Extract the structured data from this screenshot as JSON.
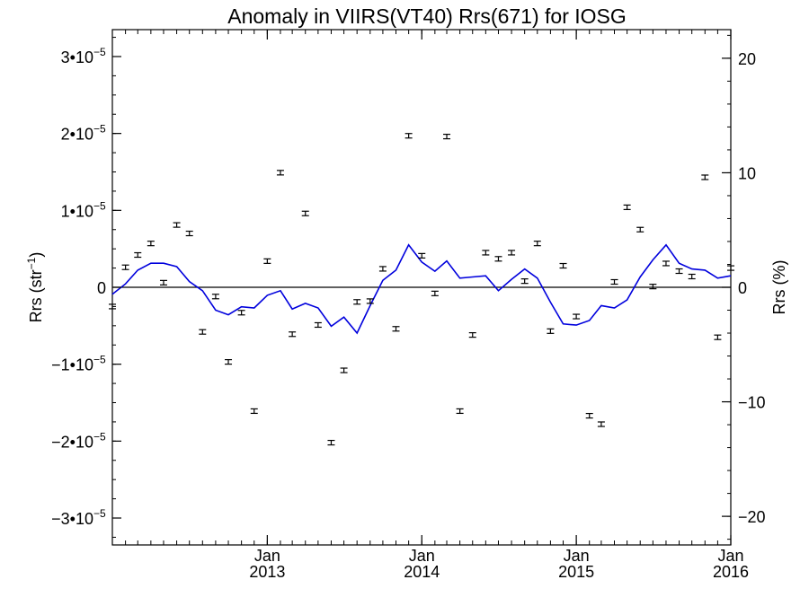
{
  "chart_data": {
    "type": "scatter",
    "title": "Anomaly in VIIRS(VT40) Rrs(671) for IOSG",
    "ylabel_left": "Rrs (str⁻¹)",
    "ylabel_right": "Rrs (%)",
    "xlabel": "",
    "xlim": [
      "2012-01-01",
      "2016-01-01"
    ],
    "ylim_left": [
      -3.35e-05,
      3.35e-05
    ],
    "ylim_right": [
      -22.5,
      22.5
    ],
    "x_ticks": [
      {
        "date": "2013-01-01",
        "month": "Jan",
        "year": "2013"
      },
      {
        "date": "2014-01-01",
        "month": "Jan",
        "year": "2014"
      },
      {
        "date": "2015-01-01",
        "month": "Jan",
        "year": "2015"
      },
      {
        "date": "2016-01-01",
        "month": "Jan",
        "year": "2016"
      }
    ],
    "y_ticks_left": [
      {
        "value": 3e-05,
        "label": "3•10",
        "exp": "−5"
      },
      {
        "value": 2e-05,
        "label": "2•10",
        "exp": "−5"
      },
      {
        "value": 1e-05,
        "label": "1•10",
        "exp": "−5"
      },
      {
        "value": 0,
        "label": "0",
        "exp": ""
      },
      {
        "value": -1e-05,
        "label": "−1•10",
        "exp": "−5"
      },
      {
        "value": -2e-05,
        "label": "−2•10",
        "exp": "−5"
      },
      {
        "value": -3e-05,
        "label": "−3•10",
        "exp": "−5"
      }
    ],
    "y_ticks_right": [
      {
        "value": 20,
        "label": "20"
      },
      {
        "value": 10,
        "label": "10"
      },
      {
        "value": 0,
        "label": "0"
      },
      {
        "value": -10,
        "label": "−10"
      },
      {
        "value": -20,
        "label": "−20"
      }
    ],
    "zero_line": true,
    "grid": false,
    "series": [
      {
        "kind": "points_with_error_bars",
        "color": "#000000",
        "points": [
          {
            "x": "2012-01-01",
            "y": -2.5e-06
          },
          {
            "x": "2012-02-01",
            "y": 2.6e-06
          },
          {
            "x": "2012-03-01",
            "y": 4.2e-06
          },
          {
            "x": "2012-04-01",
            "y": 5.7e-06
          },
          {
            "x": "2012-05-01",
            "y": 6e-07
          },
          {
            "x": "2012-06-01",
            "y": 8.1e-06
          },
          {
            "x": "2012-07-01",
            "y": 7e-06
          },
          {
            "x": "2012-08-01",
            "y": -5.8e-06
          },
          {
            "x": "2012-09-01",
            "y": -1.2e-06
          },
          {
            "x": "2012-10-01",
            "y": -9.7e-06
          },
          {
            "x": "2012-11-01",
            "y": -3.3e-06
          },
          {
            "x": "2012-12-01",
            "y": -1.61e-05
          },
          {
            "x": "2013-01-01",
            "y": 3.4e-06
          },
          {
            "x": "2013-02-01",
            "y": 1.49e-05
          },
          {
            "x": "2013-03-01",
            "y": -6.1e-06
          },
          {
            "x": "2013-04-01",
            "y": 9.6e-06
          },
          {
            "x": "2013-05-01",
            "y": -4.9e-06
          },
          {
            "x": "2013-06-01",
            "y": -2.02e-05
          },
          {
            "x": "2013-07-01",
            "y": -1.08e-05
          },
          {
            "x": "2013-08-01",
            "y": -1.9e-06
          },
          {
            "x": "2013-09-01",
            "y": -1.8e-06
          },
          {
            "x": "2013-10-01",
            "y": 2.4e-06
          },
          {
            "x": "2013-11-01",
            "y": -5.4e-06
          },
          {
            "x": "2013-12-01",
            "y": 1.97e-05
          },
          {
            "x": "2014-01-01",
            "y": 4.1e-06
          },
          {
            "x": "2014-02-01",
            "y": -8e-07
          },
          {
            "x": "2014-03-01",
            "y": 1.96e-05
          },
          {
            "x": "2014-04-01",
            "y": -1.61e-05
          },
          {
            "x": "2014-05-01",
            "y": -6.2e-06
          },
          {
            "x": "2014-06-01",
            "y": 4.5e-06
          },
          {
            "x": "2014-07-01",
            "y": 3.7e-06
          },
          {
            "x": "2014-08-01",
            "y": 4.5e-06
          },
          {
            "x": "2014-09-01",
            "y": 8e-07
          },
          {
            "x": "2014-10-01",
            "y": 5.7e-06
          },
          {
            "x": "2014-11-01",
            "y": -5.7e-06
          },
          {
            "x": "2014-12-01",
            "y": 2.8e-06
          },
          {
            "x": "2015-01-01",
            "y": -3.8e-06
          },
          {
            "x": "2015-02-01",
            "y": -1.67e-05
          },
          {
            "x": "2015-03-01",
            "y": -1.78e-05
          },
          {
            "x": "2015-04-01",
            "y": 7e-07
          },
          {
            "x": "2015-05-01",
            "y": 1.04e-05
          },
          {
            "x": "2015-06-01",
            "y": 7.5e-06
          },
          {
            "x": "2015-07-01",
            "y": 1e-07
          },
          {
            "x": "2015-08-01",
            "y": 3.1e-06
          },
          {
            "x": "2015-09-01",
            "y": 2.1e-06
          },
          {
            "x": "2015-10-01",
            "y": 1.4e-06
          },
          {
            "x": "2015-11-01",
            "y": 1.43e-05
          },
          {
            "x": "2015-12-01",
            "y": -6.5e-06
          },
          {
            "x": "2016-01-01",
            "y": 2.5e-06
          }
        ]
      },
      {
        "kind": "line",
        "color": "#0000dd",
        "axis": "right",
        "points": [
          {
            "x": "2012-01-01",
            "y": -0.6
          },
          {
            "x": "2012-02-01",
            "y": 0.3
          },
          {
            "x": "2012-03-01",
            "y": 1.5
          },
          {
            "x": "2012-04-01",
            "y": 2.1
          },
          {
            "x": "2012-05-01",
            "y": 2.1
          },
          {
            "x": "2012-06-01",
            "y": 1.8
          },
          {
            "x": "2012-07-01",
            "y": 0.5
          },
          {
            "x": "2012-08-01",
            "y": -0.3
          },
          {
            "x": "2012-09-01",
            "y": -2.0
          },
          {
            "x": "2012-10-01",
            "y": -2.4
          },
          {
            "x": "2012-11-01",
            "y": -1.7
          },
          {
            "x": "2012-12-01",
            "y": -1.8
          },
          {
            "x": "2013-01-01",
            "y": -0.7
          },
          {
            "x": "2013-02-01",
            "y": -0.3
          },
          {
            "x": "2013-03-01",
            "y": -1.9
          },
          {
            "x": "2013-04-01",
            "y": -1.4
          },
          {
            "x": "2013-05-01",
            "y": -1.8
          },
          {
            "x": "2013-06-01",
            "y": -3.4
          },
          {
            "x": "2013-07-01",
            "y": -2.6
          },
          {
            "x": "2013-08-01",
            "y": -4.0
          },
          {
            "x": "2013-09-01",
            "y": -1.6
          },
          {
            "x": "2013-10-01",
            "y": 0.6
          },
          {
            "x": "2013-11-01",
            "y": 1.5
          },
          {
            "x": "2013-12-01",
            "y": 3.7
          },
          {
            "x": "2014-01-01",
            "y": 2.2
          },
          {
            "x": "2014-02-01",
            "y": 1.4
          },
          {
            "x": "2014-03-01",
            "y": 2.3
          },
          {
            "x": "2014-04-01",
            "y": 0.8
          },
          {
            "x": "2014-05-01",
            "y": 0.9
          },
          {
            "x": "2014-06-01",
            "y": 1.0
          },
          {
            "x": "2014-07-01",
            "y": -0.3
          },
          {
            "x": "2014-08-01",
            "y": 0.7
          },
          {
            "x": "2014-09-01",
            "y": 1.6
          },
          {
            "x": "2014-10-01",
            "y": 0.8
          },
          {
            "x": "2014-11-01",
            "y": -1.3
          },
          {
            "x": "2014-12-01",
            "y": -3.2
          },
          {
            "x": "2015-01-01",
            "y": -3.3
          },
          {
            "x": "2015-02-01",
            "y": -2.9
          },
          {
            "x": "2015-03-01",
            "y": -1.6
          },
          {
            "x": "2015-04-01",
            "y": -1.8
          },
          {
            "x": "2015-05-01",
            "y": -1.1
          },
          {
            "x": "2015-06-01",
            "y": 0.9
          },
          {
            "x": "2015-07-01",
            "y": 2.4
          },
          {
            "x": "2015-08-01",
            "y": 3.7
          },
          {
            "x": "2015-09-01",
            "y": 2.1
          },
          {
            "x": "2015-10-01",
            "y": 1.6
          },
          {
            "x": "2015-11-01",
            "y": 1.5
          },
          {
            "x": "2015-12-01",
            "y": 0.8
          },
          {
            "x": "2016-01-01",
            "y": 1.0
          }
        ]
      }
    ]
  }
}
